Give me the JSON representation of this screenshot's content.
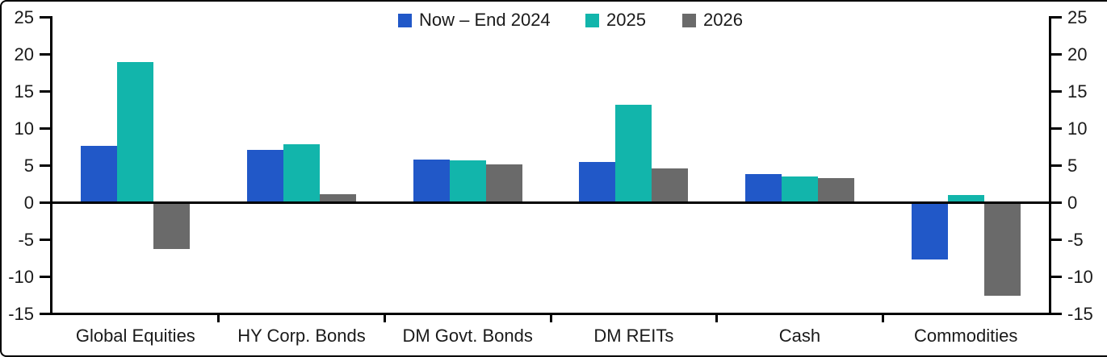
{
  "chart_data": {
    "type": "bar",
    "title": "",
    "xlabel": "",
    "ylabel": "",
    "categories": [
      "Global Equities",
      "HY Corp. Bonds",
      "DM Govt. Bonds",
      "DM REITs",
      "Cash",
      "Commodities"
    ],
    "series": [
      {
        "name": "Now – End 2024",
        "color": "#2158C8",
        "values": [
          7.6,
          7.1,
          5.8,
          5.4,
          3.8,
          -7.7
        ]
      },
      {
        "name": "2025",
        "color": "#12B5AB",
        "values": [
          18.9,
          7.8,
          5.6,
          13.2,
          3.5,
          1.0
        ]
      },
      {
        "name": "2026",
        "color": "#6A6A6A",
        "values": [
          -6.3,
          1.1,
          5.1,
          4.6,
          3.3,
          -12.6
        ]
      }
    ],
    "ylim": [
      -15,
      25
    ],
    "y_ticks": [
      25,
      20,
      15,
      10,
      5,
      0,
      -5,
      -10,
      -15
    ],
    "dual_y_axis": true,
    "grid": false,
    "legend_position": "top-center",
    "axis_color": "#000000",
    "text_color": "#1a1a1a"
  }
}
